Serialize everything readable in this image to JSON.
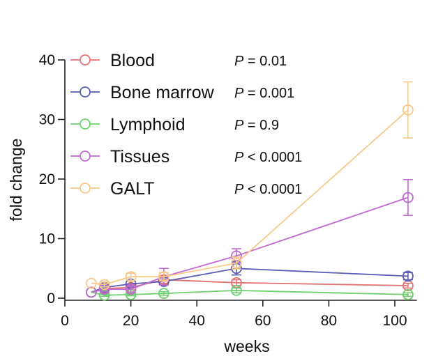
{
  "chart_data": {
    "type": "line",
    "title": "",
    "xlabel": "weeks",
    "ylabel": "fold change",
    "xlim": [
      0,
      105
    ],
    "ylim": [
      0,
      40
    ],
    "xticks": [
      0,
      20,
      40,
      60,
      80,
      100
    ],
    "yticks": [
      0,
      10,
      20,
      30,
      40
    ],
    "grid": false,
    "legend_position": "top-left",
    "x": [
      8,
      12,
      20,
      30,
      52,
      104
    ],
    "series": [
      {
        "name": "Blood",
        "color": "#e57373",
        "p_value": "P = 0.01",
        "values": [
          1.0,
          1.6,
          1.8,
          3.1,
          2.6,
          2.1
        ],
        "errors": [
          0,
          0.3,
          0.4,
          0.6,
          0.5,
          0.4
        ]
      },
      {
        "name": "Bone marrow",
        "color": "#5c5cb8",
        "p_value": "P = 0.001",
        "values": [
          1.0,
          1.8,
          2.4,
          2.8,
          5.0,
          3.7
        ],
        "errors": [
          0,
          0.3,
          0.5,
          0.6,
          1.1,
          0.6
        ]
      },
      {
        "name": "Lymphoid",
        "color": "#6fcf6f",
        "p_value": "P = 0.9",
        "values": [
          1.0,
          0.5,
          0.6,
          0.8,
          1.3,
          0.6
        ],
        "errors": [
          0,
          0.2,
          0.2,
          0.3,
          0.4,
          0.3
        ]
      },
      {
        "name": "Tissues",
        "color": "#c06ad0",
        "p_value": "P < 0.0001",
        "values": [
          1.0,
          1.5,
          1.5,
          3.6,
          7.1,
          16.9
        ],
        "errors": [
          0,
          0.4,
          0.5,
          1.4,
          1.2,
          3.0
        ]
      },
      {
        "name": "GALT",
        "color": "#f7c98a",
        "p_value": "P < 0.0001",
        "values": [
          2.5,
          2.3,
          3.6,
          3.6,
          5.9,
          31.6
        ],
        "errors": [
          0,
          0.4,
          0.6,
          0.7,
          1.0,
          4.7
        ]
      }
    ]
  }
}
